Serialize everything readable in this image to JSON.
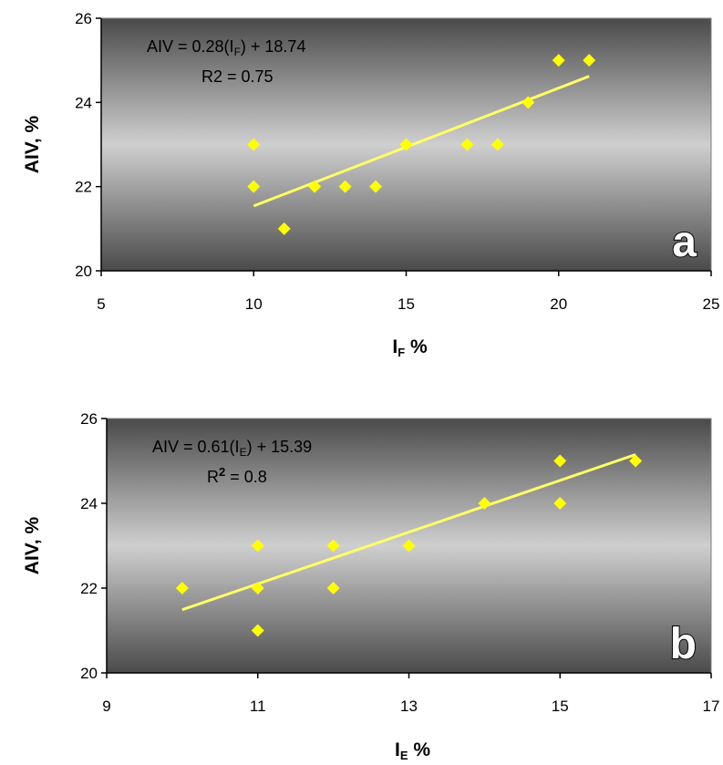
{
  "chart_data": [
    {
      "type": "scatter",
      "panel_label": "a",
      "xlabel_main": "I",
      "xlabel_sub": "F",
      "xlabel_suffix": " %",
      "ylabel": "AIV, %",
      "xlim": [
        5,
        25
      ],
      "ylim": [
        20,
        26
      ],
      "xticks": [
        "5",
        "10",
        "15",
        "20",
        "25"
      ],
      "yticks": [
        "20",
        "22",
        "24",
        "26"
      ],
      "points": [
        {
          "x": 10,
          "y": 23
        },
        {
          "x": 10,
          "y": 22
        },
        {
          "x": 11,
          "y": 21
        },
        {
          "x": 12,
          "y": 22
        },
        {
          "x": 13,
          "y": 22
        },
        {
          "x": 14,
          "y": 22
        },
        {
          "x": 15,
          "y": 23
        },
        {
          "x": 17,
          "y": 23
        },
        {
          "x": 18,
          "y": 23
        },
        {
          "x": 19,
          "y": 24
        },
        {
          "x": 20,
          "y": 25
        },
        {
          "x": 21,
          "y": 25
        }
      ],
      "trendline": {
        "slope": 0.28,
        "intercept": 18.74,
        "x_range": [
          10,
          21
        ]
      },
      "equation": {
        "prefix": "AIV = 0.28(I",
        "sub": "F",
        "suffix": ") + 18.74"
      },
      "r2": {
        "label": "R2",
        "superscript": "",
        "value": " = 0.75"
      },
      "colors": {
        "points": "#ffff00",
        "trendline": "#ffff66",
        "plot_edge": "#4a4a4a",
        "plot_center": "#cfcfcf"
      }
    },
    {
      "type": "scatter",
      "panel_label": "b",
      "xlabel_main": "I",
      "xlabel_sub": "E",
      "xlabel_suffix": " %",
      "ylabel": "AIV, %",
      "xlim": [
        9,
        17
      ],
      "ylim": [
        20,
        26
      ],
      "xticks": [
        "9",
        "11",
        "13",
        "15",
        "17"
      ],
      "yticks": [
        "20",
        "22",
        "24",
        "26"
      ],
      "points": [
        {
          "x": 10,
          "y": 22
        },
        {
          "x": 11,
          "y": 23
        },
        {
          "x": 11,
          "y": 22
        },
        {
          "x": 11,
          "y": 21
        },
        {
          "x": 12,
          "y": 23
        },
        {
          "x": 12,
          "y": 22
        },
        {
          "x": 13,
          "y": 23
        },
        {
          "x": 14,
          "y": 24
        },
        {
          "x": 15,
          "y": 25
        },
        {
          "x": 15,
          "y": 24
        },
        {
          "x": 16,
          "y": 25
        }
      ],
      "trendline": {
        "slope": 0.61,
        "intercept": 15.39,
        "x_range": [
          10,
          16
        ]
      },
      "equation": {
        "prefix": "AIV = 0.61(I",
        "sub": "E",
        "suffix": ") + 15.39"
      },
      "r2": {
        "label": "R",
        "superscript": "2",
        "value": " = 0.8"
      },
      "colors": {
        "points": "#ffff00",
        "trendline": "#ffff66",
        "plot_edge": "#4a4a4a",
        "plot_center": "#cfcfcf"
      }
    }
  ]
}
